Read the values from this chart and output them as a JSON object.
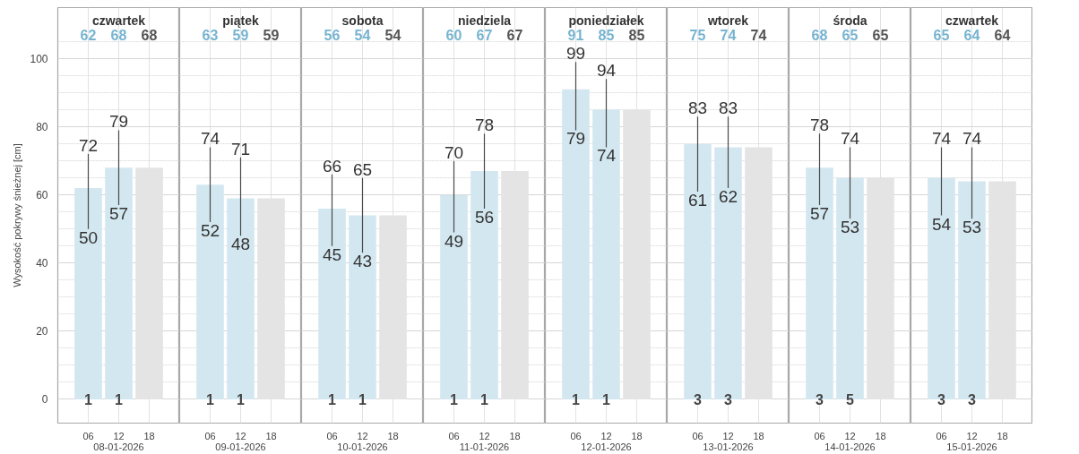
{
  "chart_data": [
    {
      "type": "bar",
      "title": "czwartek",
      "xlabel": "08-01-2026",
      "ylabel": "Wysokość pokrywy śnieżnej [cm]",
      "categories": [
        "06",
        "12",
        "18"
      ],
      "values": [
        62,
        68,
        68
      ],
      "colors": [
        "#d3e7f0",
        "#d3e7f0",
        "#e4e4e4"
      ],
      "errors": [
        [
          50,
          72
        ],
        [
          57,
          79
        ],
        null
      ],
      "annotations": [
        "62",
        "68",
        "68",
        {
          "text": "1",
          "x": "06",
          "y": 0
        },
        {
          "text": "1",
          "x": "12",
          "y": 0
        },
        {
          "text": "72",
          "x": "06",
          "y": 72
        },
        {
          "text": "50",
          "x": "06",
          "y": 50
        },
        {
          "text": "79",
          "x": "12",
          "y": 79
        },
        {
          "text": "57",
          "x": "12",
          "y": 57
        }
      ],
      "ylim": [
        -7,
        115
      ],
      "yticks": [
        0,
        20,
        40,
        60,
        80,
        100
      ],
      "grid": true
    },
    {
      "type": "bar",
      "title": "piątek",
      "xlabel": "09-01-2026",
      "categories": [
        "06",
        "12",
        "18"
      ],
      "values": [
        63,
        59,
        59
      ],
      "colors": [
        "#d3e7f0",
        "#d3e7f0",
        "#e4e4e4"
      ],
      "errors": [
        [
          52,
          74
        ],
        [
          48,
          71
        ],
        null
      ],
      "annotations": [
        "63",
        "59",
        "59",
        {
          "text": "1",
          "x": "06",
          "y": 0
        },
        {
          "text": "1",
          "x": "12",
          "y": 0
        },
        {
          "text": "74",
          "x": "06",
          "y": 74
        },
        {
          "text": "52",
          "x": "06",
          "y": 52
        },
        {
          "text": "71",
          "x": "12",
          "y": 71
        },
        {
          "text": "48",
          "x": "12",
          "y": 48
        }
      ],
      "ylim": [
        -7,
        115
      ],
      "yticks": [
        0,
        20,
        40,
        60,
        80,
        100
      ],
      "grid": true,
      "tick_labels": "x"
    },
    {
      "type": "bar",
      "title": "sobota",
      "xlabel": "10-01-2026",
      "categories": [
        "06",
        "12",
        "18"
      ],
      "values": [
        56,
        54,
        54
      ],
      "colors": [
        "#d3e7f0",
        "#d3e7f0",
        "#e4e4e4"
      ],
      "errors": [
        [
          45,
          66
        ],
        [
          43,
          65
        ],
        null
      ],
      "annotations": [
        "56",
        "54",
        "54",
        {
          "text": "1",
          "x": "06",
          "y": 0
        },
        {
          "text": "1",
          "x": "12",
          "y": 0
        },
        {
          "text": "66",
          "x": "06",
          "y": 66
        },
        {
          "text": "45",
          "x": "06",
          "y": 45
        },
        {
          "text": "65",
          "x": "12",
          "y": 65
        },
        {
          "text": "43",
          "x": "12",
          "y": 43
        }
      ],
      "ylim": [
        -7,
        115
      ],
      "yticks": [
        0,
        20,
        40,
        60,
        80,
        100
      ],
      "grid": true,
      "tick_labels": "x"
    },
    {
      "type": "bar",
      "title": "niedziela",
      "xlabel": "11-01-2026",
      "categories": [
        "06",
        "12",
        "18"
      ],
      "values": [
        60,
        67,
        67
      ],
      "colors": [
        "#d3e7f0",
        "#d3e7f0",
        "#e4e4e4"
      ],
      "errors": [
        [
          49,
          70
        ],
        [
          56,
          78
        ],
        null
      ],
      "annotations": [
        "60",
        "67",
        "67",
        {
          "text": "1",
          "x": "06",
          "y": 0
        },
        {
          "text": "1",
          "x": "12",
          "y": 0
        },
        {
          "text": "70",
          "x": "06",
          "y": 70
        },
        {
          "text": "49",
          "x": "06",
          "y": 49
        },
        {
          "text": "78",
          "x": "12",
          "y": 78
        },
        {
          "text": "56",
          "x": "12",
          "y": 56
        }
      ],
      "ylim": [
        -7,
        115
      ],
      "yticks": [
        0,
        20,
        40,
        60,
        80,
        100
      ],
      "grid": true,
      "tick_labels": "x"
    },
    {
      "type": "bar",
      "title": "poniedziałek",
      "xlabel": "12-01-2026",
      "categories": [
        "06",
        "12",
        "18"
      ],
      "values": [
        91,
        85,
        85
      ],
      "colors": [
        "#d3e7f0",
        "#d3e7f0",
        "#e4e4e4"
      ],
      "errors": [
        [
          79,
          99
        ],
        [
          74,
          94
        ],
        null
      ],
      "annotations": [
        "91",
        "85",
        "85",
        {
          "text": "1",
          "x": "06",
          "y": 0
        },
        {
          "text": "1",
          "x": "12",
          "y": 0
        },
        {
          "text": "99",
          "x": "06",
          "y": 99
        },
        {
          "text": "79",
          "x": "06",
          "y": 79
        },
        {
          "text": "94",
          "x": "12",
          "y": 94
        },
        {
          "text": "74",
          "x": "12",
          "y": 74
        }
      ],
      "ylim": [
        -7,
        115
      ],
      "yticks": [
        0,
        20,
        40,
        60,
        80,
        100
      ],
      "grid": true,
      "tick_labels": "x"
    },
    {
      "type": "bar",
      "title": "wtorek",
      "xlabel": "13-01-2026",
      "categories": [
        "06",
        "12",
        "18"
      ],
      "values": [
        75,
        74,
        74
      ],
      "colors": [
        "#d3e7f0",
        "#d3e7f0",
        "#e4e4e4"
      ],
      "errors": [
        [
          61,
          83
        ],
        [
          62,
          83
        ],
        null
      ],
      "annotations": [
        "75",
        "74",
        "74",
        {
          "text": "3",
          "x": "06",
          "y": 0
        },
        {
          "text": "3",
          "x": "12",
          "y": 0
        },
        {
          "text": "83",
          "x": "06",
          "y": 83
        },
        {
          "text": "61",
          "x": "06",
          "y": 61
        },
        {
          "text": "83",
          "x": "12",
          "y": 83
        },
        {
          "text": "62",
          "x": "12",
          "y": 62
        }
      ],
      "ylim": [
        -7,
        115
      ],
      "yticks": [
        0,
        20,
        40,
        60,
        80,
        100
      ],
      "grid": true,
      "tick_labels": "x"
    },
    {
      "type": "bar",
      "title": "środa",
      "xlabel": "14-01-2026",
      "categories": [
        "06",
        "12",
        "18"
      ],
      "values": [
        68,
        65,
        65
      ],
      "colors": [
        "#d3e7f0",
        "#d3e7f0",
        "#e4e4e4"
      ],
      "errors": [
        [
          57,
          78
        ],
        [
          53,
          74
        ],
        null
      ],
      "annotations": [
        "68",
        "65",
        "65",
        {
          "text": "3",
          "x": "06",
          "y": 0
        },
        {
          "text": "5",
          "x": "12",
          "y": 0
        },
        {
          "text": "78",
          "x": "06",
          "y": 78
        },
        {
          "text": "57",
          "x": "06",
          "y": 57
        },
        {
          "text": "74",
          "x": "12",
          "y": 74
        },
        {
          "text": "53",
          "x": "12",
          "y": 53
        }
      ],
      "ylim": [
        -7,
        115
      ],
      "yticks": [
        0,
        20,
        40,
        60,
        80,
        100
      ],
      "grid": true,
      "tick_labels": "x"
    },
    {
      "type": "bar",
      "title": "czwartek",
      "xlabel": "15-01-2026",
      "categories": [
        "06",
        "12",
        "18"
      ],
      "values": [
        65,
        64,
        64
      ],
      "colors": [
        "#d3e7f0",
        "#d3e7f0",
        "#e4e4e4"
      ],
      "errors": [
        [
          54,
          74
        ],
        [
          53,
          74
        ],
        null
      ],
      "annotations": [
        "65",
        "64",
        "64",
        {
          "text": "3",
          "x": "06",
          "y": 0
        },
        {
          "text": "3",
          "x": "12",
          "y": 0
        },
        {
          "text": "74",
          "x": "06",
          "y": 74
        },
        {
          "text": "54",
          "x": "06",
          "y": 54
        },
        {
          "text": "74",
          "x": "12",
          "y": 74
        },
        {
          "text": "53",
          "x": "12",
          "y": 53
        }
      ],
      "ylim": [
        -7,
        115
      ],
      "yticks": [
        0,
        20,
        40,
        60,
        80,
        100
      ],
      "grid": true,
      "tick_labels": "x"
    }
  ]
}
